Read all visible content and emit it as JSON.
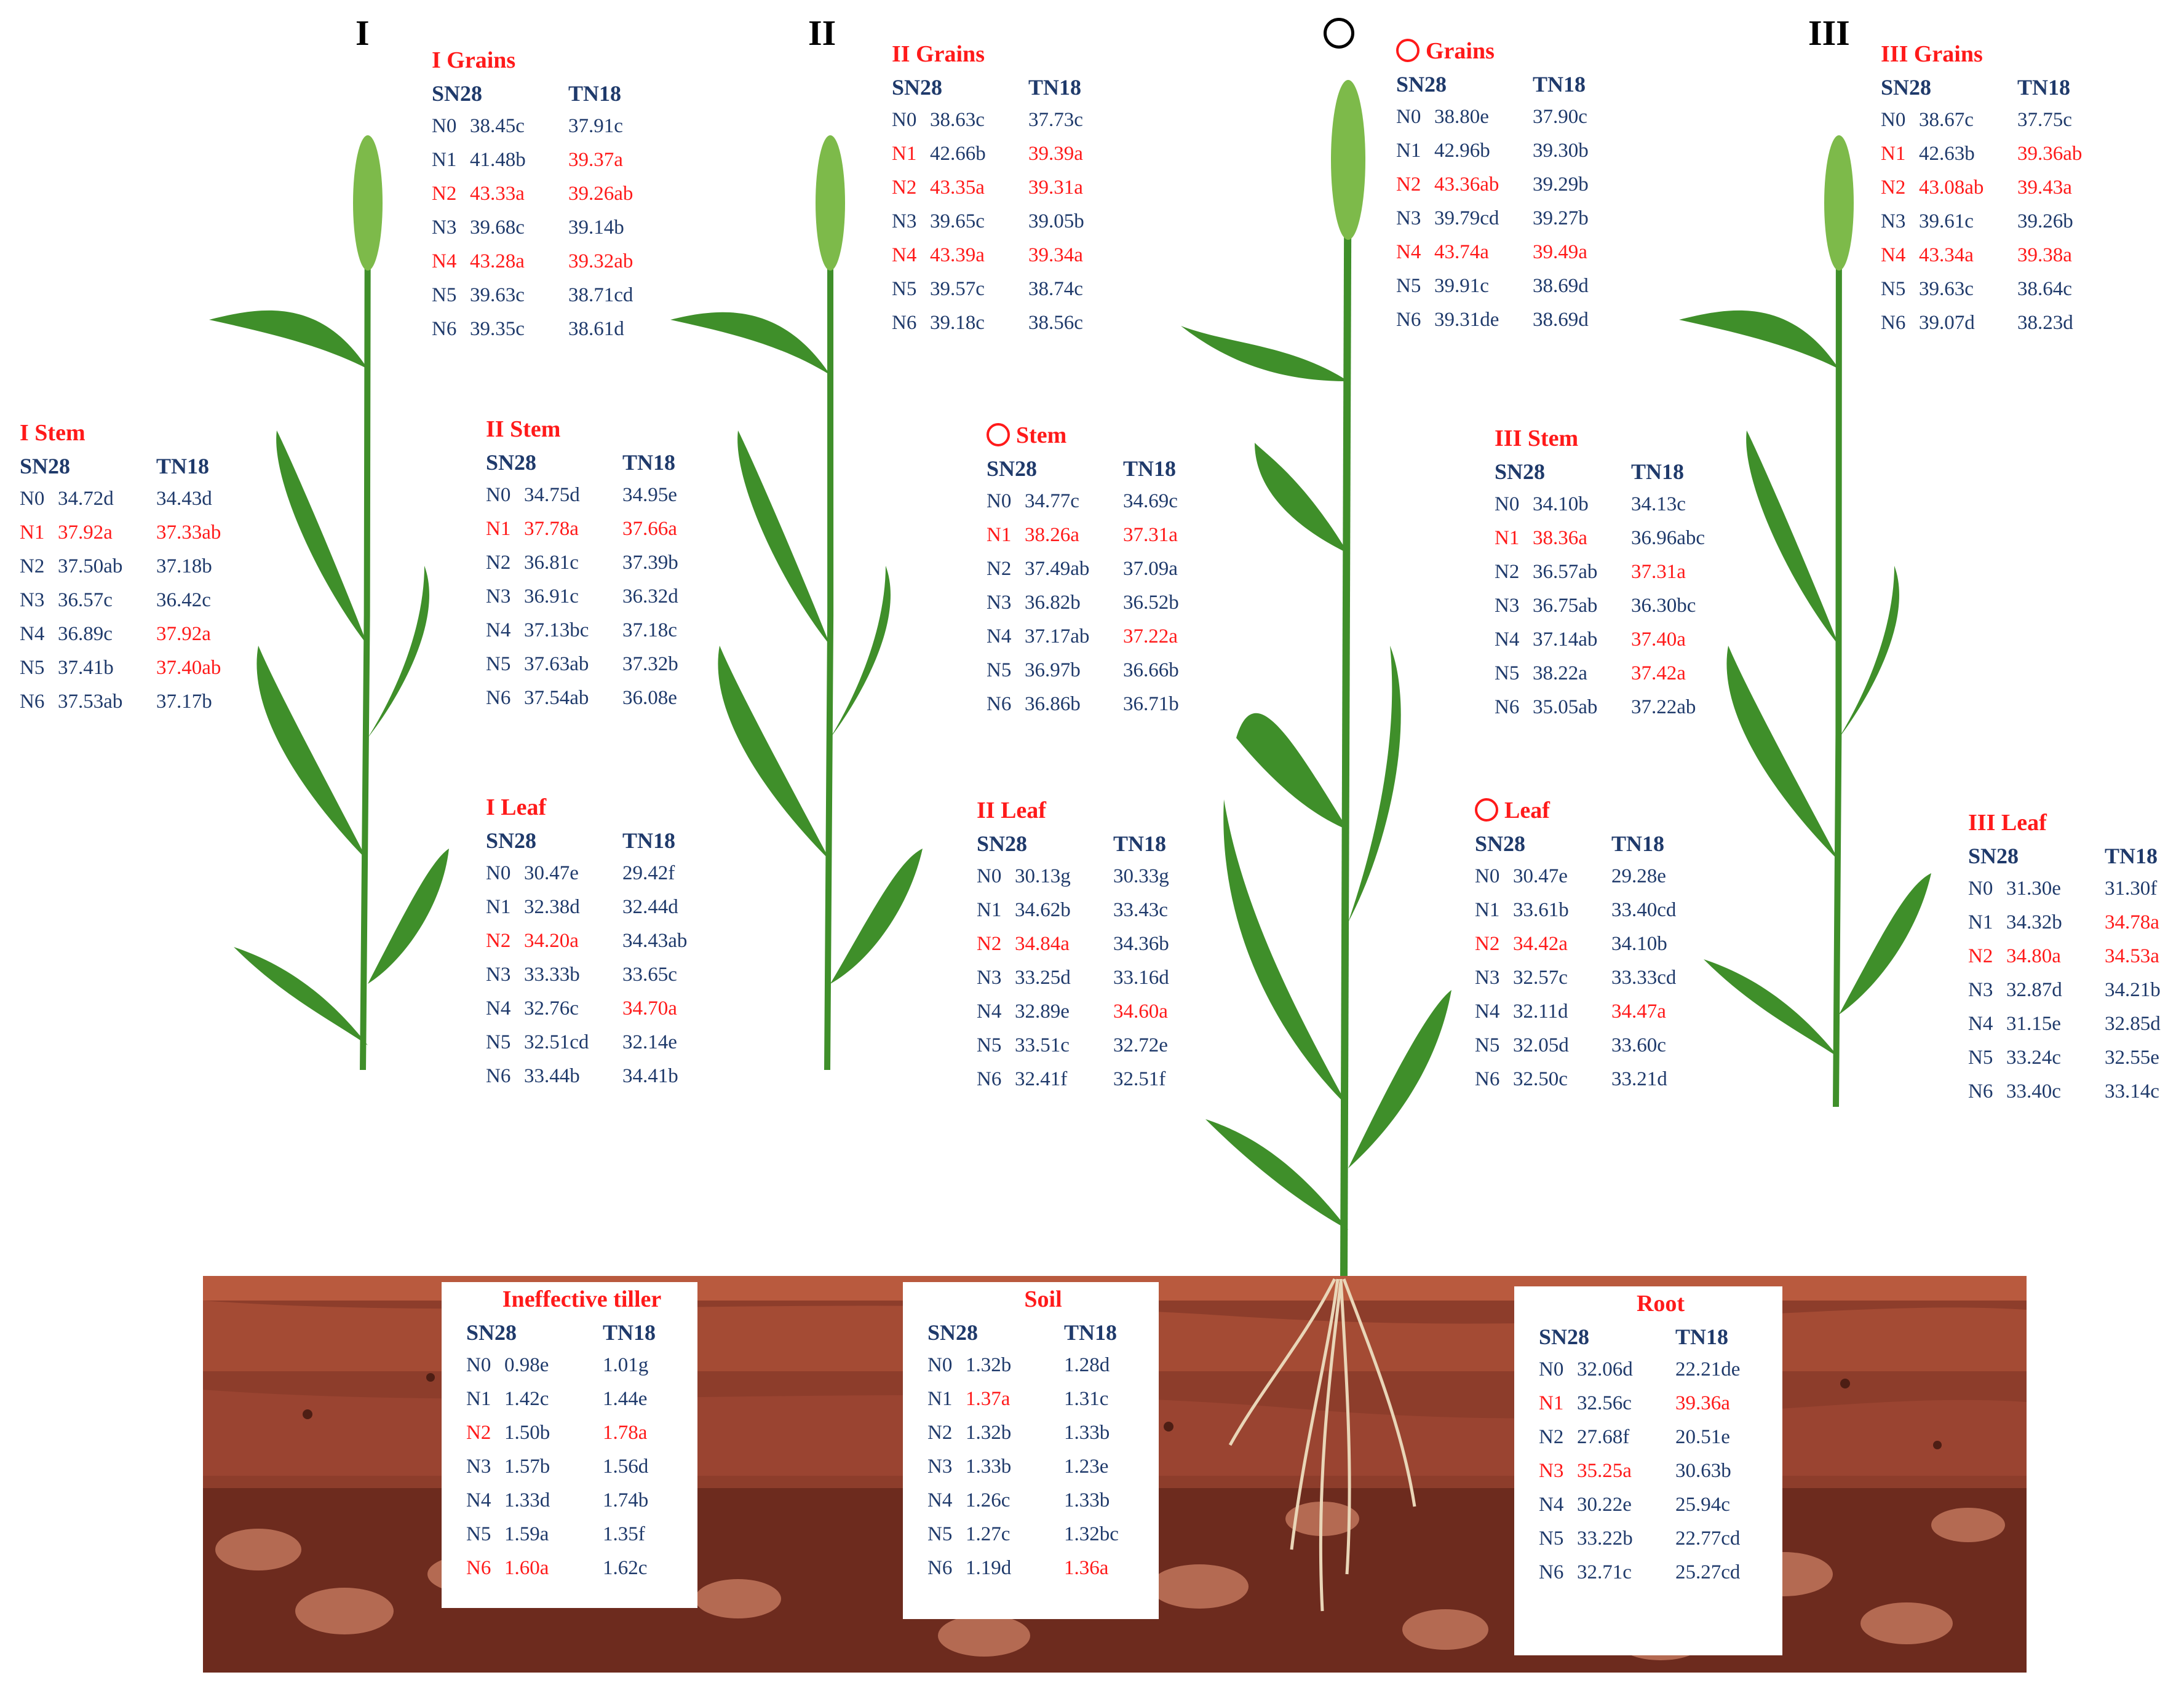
{
  "stages": [
    {
      "id": "s1",
      "label": "I"
    },
    {
      "id": "s2",
      "label": "II"
    },
    {
      "id": "s3",
      "label": "○"
    },
    {
      "id": "s4",
      "label": "III"
    }
  ],
  "columns": {
    "a": "SN28",
    "b": "TN18"
  },
  "colors": {
    "highlight": "#ff1a1a",
    "normal": "#1f3a6b",
    "title": "#ff1a1a",
    "soil_dark": "#7a2f22",
    "soil_mid": "#9b4a35",
    "leaf": "#3f8f2a"
  },
  "blocks": [
    {
      "id": "i-grains",
      "title": "I Grains",
      "rows": [
        {
          "n": "N0",
          "a": "38.45c",
          "b": "37.91c",
          "ra": false,
          "rb": false,
          "rn": false
        },
        {
          "n": "N1",
          "a": "41.48b",
          "b": "39.37a",
          "ra": false,
          "rb": true,
          "rn": false
        },
        {
          "n": "N2",
          "a": "43.33a",
          "b": "39.26ab",
          "ra": true,
          "rb": true,
          "rn": true
        },
        {
          "n": "N3",
          "a": "39.68c",
          "b": "39.14b",
          "ra": false,
          "rb": false,
          "rn": false
        },
        {
          "n": "N4",
          "a": "43.28a",
          "b": "39.32ab",
          "ra": true,
          "rb": true,
          "rn": true
        },
        {
          "n": "N5",
          "a": "39.63c",
          "b": "38.71cd",
          "ra": false,
          "rb": false,
          "rn": false
        },
        {
          "n": "N6",
          "a": "39.35c",
          "b": "38.61d",
          "ra": false,
          "rb": false,
          "rn": false
        }
      ]
    },
    {
      "id": "i-stem",
      "title": "I Stem",
      "rows": [
        {
          "n": "N0",
          "a": "34.72d",
          "b": "34.43d",
          "ra": false,
          "rb": false,
          "rn": false
        },
        {
          "n": "N1",
          "a": "37.92a",
          "b": "37.33ab",
          "ra": true,
          "rb": true,
          "rn": true
        },
        {
          "n": "N2",
          "a": "37.50ab",
          "b": "37.18b",
          "ra": false,
          "rb": false,
          "rn": false
        },
        {
          "n": "N3",
          "a": "36.57c",
          "b": "36.42c",
          "ra": false,
          "rb": false,
          "rn": false
        },
        {
          "n": "N4",
          "a": "36.89c",
          "b": "37.92a",
          "ra": false,
          "rb": true,
          "rn": false
        },
        {
          "n": "N5",
          "a": "37.41b",
          "b": "37.40ab",
          "ra": false,
          "rb": true,
          "rn": false
        },
        {
          "n": "N6",
          "a": "37.53ab",
          "b": "37.17b",
          "ra": false,
          "rb": false,
          "rn": false
        }
      ]
    },
    {
      "id": "i-leaf",
      "title": "I Leaf",
      "rows": [
        {
          "n": "N0",
          "a": "30.47e",
          "b": "29.42f",
          "ra": false,
          "rb": false,
          "rn": false
        },
        {
          "n": "N1",
          "a": "32.38d",
          "b": "32.44d",
          "ra": false,
          "rb": false,
          "rn": false
        },
        {
          "n": "N2",
          "a": "34.20a",
          "b": "34.43ab",
          "ra": true,
          "rb": false,
          "rn": true
        },
        {
          "n": "N3",
          "a": "33.33b",
          "b": "33.65c",
          "ra": false,
          "rb": false,
          "rn": false
        },
        {
          "n": "N4",
          "a": "32.76c",
          "b": "34.70a",
          "ra": false,
          "rb": true,
          "rn": false
        },
        {
          "n": "N5",
          "a": "32.51cd",
          "b": "32.14e",
          "ra": false,
          "rb": false,
          "rn": false
        },
        {
          "n": "N6",
          "a": "33.44b",
          "b": "34.41b",
          "ra": false,
          "rb": false,
          "rn": false
        }
      ]
    },
    {
      "id": "ii-grains",
      "title": "II Grains",
      "rows": [
        {
          "n": "N0",
          "a": "38.63c",
          "b": "37.73c",
          "ra": false,
          "rb": false,
          "rn": false
        },
        {
          "n": "N1",
          "a": "42.66b",
          "b": "39.39a",
          "ra": false,
          "rb": true,
          "rn": true
        },
        {
          "n": "N2",
          "a": "43.35a",
          "b": "39.31a",
          "ra": true,
          "rb": true,
          "rn": true
        },
        {
          "n": "N3",
          "a": "39.65c",
          "b": "39.05b",
          "ra": false,
          "rb": false,
          "rn": false
        },
        {
          "n": "N4",
          "a": "43.39a",
          "b": "39.34a",
          "ra": true,
          "rb": true,
          "rn": true
        },
        {
          "n": "N5",
          "a": "39.57c",
          "b": "38.74c",
          "ra": false,
          "rb": false,
          "rn": false
        },
        {
          "n": "N6",
          "a": "39.18c",
          "b": "38.56c",
          "ra": false,
          "rb": false,
          "rn": false
        }
      ]
    },
    {
      "id": "ii-stem",
      "title": "II Stem",
      "rows": [
        {
          "n": "N0",
          "a": "34.75d",
          "b": "34.95e",
          "ra": false,
          "rb": false,
          "rn": false
        },
        {
          "n": "N1",
          "a": "37.78a",
          "b": "37.66a",
          "ra": true,
          "rb": true,
          "rn": true
        },
        {
          "n": "N2",
          "a": "36.81c",
          "b": "37.39b",
          "ra": false,
          "rb": false,
          "rn": false
        },
        {
          "n": "N3",
          "a": "36.91c",
          "b": "36.32d",
          "ra": false,
          "rb": false,
          "rn": false
        },
        {
          "n": "N4",
          "a": "37.13bc",
          "b": "37.18c",
          "ra": false,
          "rb": false,
          "rn": false
        },
        {
          "n": "N5",
          "a": "37.63ab",
          "b": "37.32b",
          "ra": false,
          "rb": false,
          "rn": false
        },
        {
          "n": "N6",
          "a": "37.54ab",
          "b": "36.08e",
          "ra": false,
          "rb": false,
          "rn": false
        }
      ]
    },
    {
      "id": "ii-leaf",
      "title": "II Leaf",
      "rows": [
        {
          "n": "N0",
          "a": "30.13g",
          "b": "30.33g",
          "ra": false,
          "rb": false,
          "rn": false
        },
        {
          "n": "N1",
          "a": "34.62b",
          "b": "33.43c",
          "ra": false,
          "rb": false,
          "rn": false
        },
        {
          "n": "N2",
          "a": "34.84a",
          "b": "34.36b",
          "ra": true,
          "rb": false,
          "rn": true
        },
        {
          "n": "N3",
          "a": "33.25d",
          "b": "33.16d",
          "ra": false,
          "rb": false,
          "rn": false
        },
        {
          "n": "N4",
          "a": "32.89e",
          "b": "34.60a",
          "ra": false,
          "rb": true,
          "rn": false
        },
        {
          "n": "N5",
          "a": "33.51c",
          "b": "32.72e",
          "ra": false,
          "rb": false,
          "rn": false
        },
        {
          "n": "N6",
          "a": "32.41f",
          "b": "32.51f",
          "ra": false,
          "rb": false,
          "rn": false
        }
      ]
    },
    {
      "id": "o-grains",
      "title": "Grains",
      "circle": true,
      "rows": [
        {
          "n": "N0",
          "a": "38.80e",
          "b": "37.90c",
          "ra": false,
          "rb": false,
          "rn": false
        },
        {
          "n": "N1",
          "a": "42.96b",
          "b": "39.30b",
          "ra": false,
          "rb": false,
          "rn": false
        },
        {
          "n": "N2",
          "a": "43.36ab",
          "b": "39.29b",
          "ra": true,
          "rb": false,
          "rn": true
        },
        {
          "n": "N3",
          "a": "39.79cd",
          "b": "39.27b",
          "ra": false,
          "rb": false,
          "rn": false
        },
        {
          "n": "N4",
          "a": "43.74a",
          "b": "39.49a",
          "ra": true,
          "rb": true,
          "rn": true
        },
        {
          "n": "N5",
          "a": "39.91c",
          "b": "38.69d",
          "ra": false,
          "rb": false,
          "rn": false
        },
        {
          "n": "N6",
          "a": "39.31de",
          "b": "38.69d",
          "ra": false,
          "rb": false,
          "rn": false
        }
      ]
    },
    {
      "id": "o-stem",
      "title": "Stem",
      "circle": true,
      "rows": [
        {
          "n": "N0",
          "a": "34.77c",
          "b": "34.69c",
          "ra": false,
          "rb": false,
          "rn": false
        },
        {
          "n": "N1",
          "a": "38.26a",
          "b": "37.31a",
          "ra": true,
          "rb": true,
          "rn": true
        },
        {
          "n": "N2",
          "a": "37.49ab",
          "b": "37.09a",
          "ra": false,
          "rb": false,
          "rn": false
        },
        {
          "n": "N3",
          "a": "36.82b",
          "b": "36.52b",
          "ra": false,
          "rb": false,
          "rn": false
        },
        {
          "n": "N4",
          "a": "37.17ab",
          "b": "37.22a",
          "ra": false,
          "rb": true,
          "rn": false
        },
        {
          "n": "N5",
          "a": "36.97b",
          "b": "36.66b",
          "ra": false,
          "rb": false,
          "rn": false
        },
        {
          "n": "N6",
          "a": "36.86b",
          "b": "36.71b",
          "ra": false,
          "rb": false,
          "rn": false
        }
      ]
    },
    {
      "id": "o-leaf",
      "title": "Leaf",
      "circle": true,
      "rows": [
        {
          "n": "N0",
          "a": "30.47e",
          "b": "29.28e",
          "ra": false,
          "rb": false,
          "rn": false
        },
        {
          "n": "N1",
          "a": "33.61b",
          "b": "33.40cd",
          "ra": false,
          "rb": false,
          "rn": false
        },
        {
          "n": "N2",
          "a": "34.42a",
          "b": "34.10b",
          "ra": true,
          "rb": false,
          "rn": true
        },
        {
          "n": "N3",
          "a": "32.57c",
          "b": "33.33cd",
          "ra": false,
          "rb": false,
          "rn": false
        },
        {
          "n": "N4",
          "a": "32.11d",
          "b": "34.47a",
          "ra": false,
          "rb": true,
          "rn": false
        },
        {
          "n": "N5",
          "a": "32.05d",
          "b": "33.60c",
          "ra": false,
          "rb": false,
          "rn": false
        },
        {
          "n": "N6",
          "a": "32.50c",
          "b": "33.21d",
          "ra": false,
          "rb": false,
          "rn": false
        }
      ]
    },
    {
      "id": "iii-grains",
      "title": "III Grains",
      "rows": [
        {
          "n": "N0",
          "a": "38.67c",
          "b": "37.75c",
          "ra": false,
          "rb": false,
          "rn": false
        },
        {
          "n": "N1",
          "a": "42.63b",
          "b": "39.36ab",
          "ra": false,
          "rb": true,
          "rn": true
        },
        {
          "n": "N2",
          "a": "43.08ab",
          "b": "39.43a",
          "ra": true,
          "rb": true,
          "rn": true
        },
        {
          "n": "N3",
          "a": "39.61c",
          "b": "39.26b",
          "ra": false,
          "rb": false,
          "rn": false
        },
        {
          "n": "N4",
          "a": "43.34a",
          "b": "39.38a",
          "ra": true,
          "rb": true,
          "rn": true
        },
        {
          "n": "N5",
          "a": "39.63c",
          "b": "38.64c",
          "ra": false,
          "rb": false,
          "rn": false
        },
        {
          "n": "N6",
          "a": "39.07d",
          "b": "38.23d",
          "ra": false,
          "rb": false,
          "rn": false
        }
      ]
    },
    {
      "id": "iii-stem",
      "title": "III Stem",
      "rows": [
        {
          "n": "N0",
          "a": "34.10b",
          "b": "34.13c",
          "ra": false,
          "rb": false,
          "rn": false
        },
        {
          "n": "N1",
          "a": "38.36a",
          "b": "36.96abc",
          "ra": true,
          "rb": false,
          "rn": true
        },
        {
          "n": "N2",
          "a": "36.57ab",
          "b": "37.31a",
          "ra": false,
          "rb": true,
          "rn": false
        },
        {
          "n": "N3",
          "a": "36.75ab",
          "b": "36.30bc",
          "ra": false,
          "rb": false,
          "rn": false
        },
        {
          "n": "N4",
          "a": "37.14ab",
          "b": "37.40a",
          "ra": false,
          "rb": true,
          "rn": false
        },
        {
          "n": "N5",
          "a": "38.22a",
          "b": "37.42a",
          "ra": false,
          "rb": true,
          "rn": false
        },
        {
          "n": "N6",
          "a": "35.05ab",
          "b": "37.22ab",
          "ra": false,
          "rb": false,
          "rn": false
        }
      ]
    },
    {
      "id": "iii-leaf",
      "title": "III Leaf",
      "rows": [
        {
          "n": "N0",
          "a": "31.30e",
          "b": "31.30f",
          "ra": false,
          "rb": false,
          "rn": false
        },
        {
          "n": "N1",
          "a": "34.32b",
          "b": "34.78a",
          "ra": false,
          "rb": true,
          "rn": false
        },
        {
          "n": "N2",
          "a": "34.80a",
          "b": "34.53a",
          "ra": true,
          "rb": true,
          "rn": true
        },
        {
          "n": "N3",
          "a": "32.87d",
          "b": "34.21b",
          "ra": false,
          "rb": false,
          "rn": false
        },
        {
          "n": "N4",
          "a": "31.15e",
          "b": "32.85d",
          "ra": false,
          "rb": false,
          "rn": false
        },
        {
          "n": "N5",
          "a": "33.24c",
          "b": "32.55e",
          "ra": false,
          "rb": false,
          "rn": false
        },
        {
          "n": "N6",
          "a": "33.40c",
          "b": "33.14c",
          "ra": false,
          "rb": false,
          "rn": false
        }
      ]
    },
    {
      "id": "tiller",
      "title": "Ineffective tiller",
      "boxed": true,
      "rows": [
        {
          "n": "N0",
          "a": "0.98e",
          "b": "1.01g",
          "ra": false,
          "rb": false,
          "rn": false
        },
        {
          "n": "N1",
          "a": "1.42c",
          "b": "1.44e",
          "ra": false,
          "rb": false,
          "rn": false
        },
        {
          "n": "N2",
          "a": "1.50b",
          "b": "1.78a",
          "ra": false,
          "rb": true,
          "rn": true
        },
        {
          "n": "N3",
          "a": "1.57b",
          "b": "1.56d",
          "ra": false,
          "rb": false,
          "rn": false
        },
        {
          "n": "N4",
          "a": "1.33d",
          "b": "1.74b",
          "ra": false,
          "rb": false,
          "rn": false
        },
        {
          "n": "N5",
          "a": "1.59a",
          "b": "1.35f",
          "ra": false,
          "rb": false,
          "rn": false
        },
        {
          "n": "N6",
          "a": "1.60a",
          "b": "1.62c",
          "ra": true,
          "rb": false,
          "rn": true
        }
      ]
    },
    {
      "id": "soil",
      "title": "Soil",
      "boxed": true,
      "rows": [
        {
          "n": "N0",
          "a": "1.32b",
          "b": "1.28d",
          "ra": false,
          "rb": false,
          "rn": false
        },
        {
          "n": "N1",
          "a": "1.37a",
          "b": "1.31c",
          "ra": true,
          "rb": false,
          "rn": false
        },
        {
          "n": "N2",
          "a": "1.32b",
          "b": "1.33b",
          "ra": false,
          "rb": false,
          "rn": false
        },
        {
          "n": "N3",
          "a": "1.33b",
          "b": "1.23e",
          "ra": false,
          "rb": false,
          "rn": false
        },
        {
          "n": "N4",
          "a": "1.26c",
          "b": "1.33b",
          "ra": false,
          "rb": false,
          "rn": false
        },
        {
          "n": "N5",
          "a": "1.27c",
          "b": "1.32bc",
          "ra": false,
          "rb": false,
          "rn": false
        },
        {
          "n": "N6",
          "a": "1.19d",
          "b": "1.36a",
          "ra": false,
          "rb": true,
          "rn": false
        }
      ]
    },
    {
      "id": "root",
      "title": "Root",
      "boxed": true,
      "rows": [
        {
          "n": "N0",
          "a": "32.06d",
          "b": "22.21de",
          "ra": false,
          "rb": false,
          "rn": false
        },
        {
          "n": "N1",
          "a": "32.56c",
          "b": "39.36a",
          "ra": false,
          "rb": true,
          "rn": true
        },
        {
          "n": "N2",
          "a": "27.68f",
          "b": "20.51e",
          "ra": false,
          "rb": false,
          "rn": false
        },
        {
          "n": "N3",
          "a": "35.25a",
          "b": "30.63b",
          "ra": true,
          "rb": false,
          "rn": true
        },
        {
          "n": "N4",
          "a": "30.22e",
          "b": "25.94c",
          "ra": false,
          "rb": false,
          "rn": false
        },
        {
          "n": "N5",
          "a": "33.22b",
          "b": "22.77cd",
          "ra": false,
          "rb": false,
          "rn": false
        },
        {
          "n": "N6",
          "a": "32.71c",
          "b": "25.27cd",
          "ra": false,
          "rb": false,
          "rn": false
        }
      ]
    }
  ]
}
